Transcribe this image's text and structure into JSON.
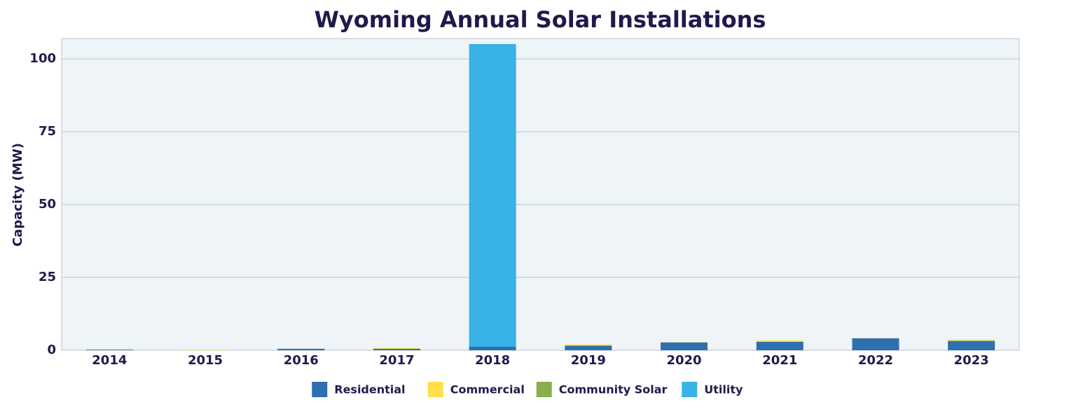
{
  "chart_data": {
    "type": "stacked_bar",
    "title": "Wyoming Annual Solar Installations",
    "y_label": "Capacity (MW)",
    "categories": [
      "2014",
      "2015",
      "2016",
      "2017",
      "2018",
      "2019",
      "2020",
      "2021",
      "2022",
      "2023"
    ],
    "series": [
      {
        "name": "Residential",
        "color": "#2e6fb0",
        "values": [
          0.1,
          0,
          0.5,
          0.5,
          1.2,
          1.6,
          2.7,
          2.9,
          4.1,
          3.2
        ]
      },
      {
        "name": "Commercial",
        "color": "#ffe04b",
        "values": [
          0,
          0.2,
          0,
          0.3,
          0,
          0.4,
          0.1,
          0.5,
          0.1,
          0.2
        ]
      },
      {
        "name": "Community Solar",
        "color": "#85b04b",
        "values": [
          0.2,
          0,
          0,
          0,
          0,
          0,
          0,
          0,
          0,
          0.1
        ]
      },
      {
        "name": "Utility",
        "color": "#37b3e6",
        "values": [
          0,
          0,
          0,
          0,
          103.9,
          0,
          0,
          0,
          0,
          0
        ]
      }
    ],
    "ylim": [
      0,
      107
    ],
    "yticks": [
      0,
      25,
      50,
      75,
      100
    ],
    "grid": true,
    "legend": "bottom"
  }
}
